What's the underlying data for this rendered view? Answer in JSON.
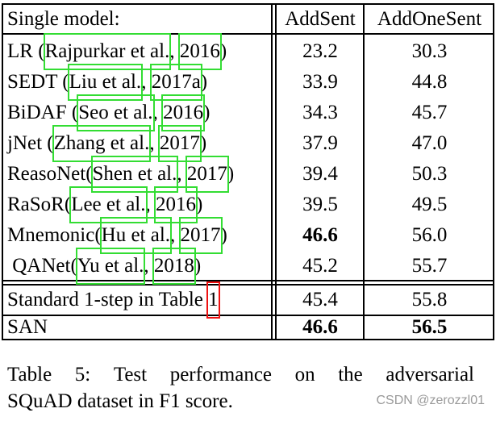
{
  "table": {
    "header": {
      "model": "Single model:",
      "addsent": "AddSent",
      "addonesent": "AddOneSent"
    },
    "rows": [
      {
        "name": "LR (",
        "cite_author": "Rajpurkar et al.",
        "sep": ", ",
        "cite_year": "2016",
        "close": ")",
        "addsent": "23.2",
        "addonesent": "30.3",
        "bold_as": false,
        "bold_aos": false
      },
      {
        "name": "SEDT (",
        "cite_author": "Liu et al.",
        "sep": ", ",
        "cite_year": "2017a",
        "close": ")",
        "addsent": "33.9",
        "addonesent": "44.8",
        "bold_as": false,
        "bold_aos": false
      },
      {
        "name": "BiDAF (",
        "cite_author": "Seo et al.",
        "sep": ", ",
        "cite_year": "2016",
        "close": ")",
        "addsent": "34.3",
        "addonesent": "45.7",
        "bold_as": false,
        "bold_aos": false
      },
      {
        "name": "jNet (",
        "cite_author": "Zhang et al.",
        "sep": ", ",
        "cite_year": "2017",
        "close": ")",
        "addsent": "37.9",
        "addonesent": "47.0",
        "bold_as": false,
        "bold_aos": false
      },
      {
        "name": "ReasoNet(",
        "cite_author": "Shen et al.",
        "sep": ", ",
        "cite_year": "2017",
        "close": ")",
        "addsent": "39.4",
        "addonesent": "50.3",
        "bold_as": false,
        "bold_aos": false
      },
      {
        "name": "RaSoR(",
        "cite_author": "Lee et al.",
        "sep": ", ",
        "cite_year": "2016",
        "close": ")",
        "addsent": "39.5",
        "addonesent": "49.5",
        "bold_as": false,
        "bold_aos": false
      },
      {
        "name": "Mnemonic(",
        "cite_author": "Hu et al.",
        "sep": ", ",
        "cite_year": "2017",
        "close": ")",
        "addsent": "46.6",
        "addonesent": "56.0",
        "bold_as": true,
        "bold_aos": false
      },
      {
        "name": " QANet(",
        "cite_author": "Yu et al.",
        "sep": ", ",
        "cite_year": "2018",
        "close": ")",
        "addsent": "45.2",
        "addonesent": "55.7",
        "bold_as": false,
        "bold_aos": false
      }
    ],
    "ours": [
      {
        "name": "Standard 1-step in Table ",
        "ref": "1",
        "addsent": "45.4",
        "addonesent": "55.8"
      },
      {
        "name": "SAN",
        "addsent": "46.6",
        "addonesent": "56.5"
      }
    ]
  },
  "caption": {
    "label": "Table 5:",
    "line1_words": [
      "Table",
      "5:",
      "Test",
      "performance",
      "on",
      "the",
      "adversarial"
    ],
    "line2": "SQuAD dataset in F1 score."
  },
  "watermark": "CSDN @zerozzl01",
  "colors": {
    "cite_box": "#33dd33",
    "ref_box": "#ee1111"
  }
}
